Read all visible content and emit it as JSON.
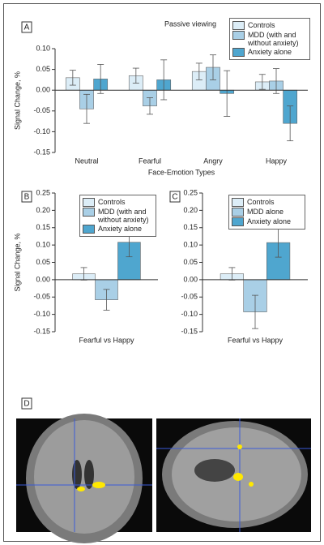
{
  "chart_data": [
    {
      "type": "bar",
      "panel": "A",
      "title": "Passive viewing",
      "ylabel": "Signal Change, %",
      "xlabel": "Face-Emotion Types",
      "categories": [
        "Neutral",
        "Fearful",
        "Angry",
        "Happy"
      ],
      "series": [
        {
          "name": "Controls",
          "color": "#dcedf7",
          "values": [
            0.03,
            0.035,
            0.045,
            0.02
          ],
          "errors": [
            0.018,
            0.018,
            0.02,
            0.018
          ]
        },
        {
          "name": "MDD (with and without anxiety)",
          "color": "#a9cfe6",
          "values": [
            -0.045,
            -0.038,
            0.055,
            0.022
          ],
          "errors": [
            0.035,
            0.02,
            0.03,
            0.03
          ]
        },
        {
          "name": "Anxiety alone",
          "color": "#4fa6cf",
          "values": [
            0.027,
            0.025,
            -0.008,
            -0.08
          ],
          "errors": [
            0.035,
            0.048,
            0.055,
            0.042
          ]
        }
      ],
      "ylim": [
        -0.15,
        0.1
      ],
      "yticks": [
        {
          "value": -0.15,
          "label": "-0.15"
        },
        {
          "value": -0.1,
          "label": "-0.10"
        },
        {
          "value": -0.05,
          "label": "-0.05"
        },
        {
          "value": 0,
          "label": "0.00"
        },
        {
          "value": 0.05,
          "label": "0.05"
        },
        {
          "value": 0.1,
          "label": "0.10"
        }
      ]
    },
    {
      "type": "bar",
      "panel": "B",
      "ylabel": "Signal Change, %",
      "categories": [
        "Fearful vs Happy"
      ],
      "series": [
        {
          "name": "Controls",
          "color": "#dcedf7",
          "values": [
            0.017
          ],
          "errors": [
            0.018
          ]
        },
        {
          "name": "MDD (with and without anxiety)",
          "color": "#a9cfe6",
          "values": [
            -0.058
          ],
          "errors": [
            0.03
          ]
        },
        {
          "name": "Anxiety alone",
          "color": "#4fa6cf",
          "values": [
            0.108
          ],
          "errors": [
            0.042
          ]
        }
      ],
      "ylim": [
        -0.15,
        0.25
      ],
      "yticks": [
        {
          "value": -0.15,
          "label": "-0.15"
        },
        {
          "value": -0.1,
          "label": "-0.10"
        },
        {
          "value": -0.05,
          "label": "-0.05"
        },
        {
          "value": 0,
          "label": "0.00"
        },
        {
          "value": 0.05,
          "label": "0.05"
        },
        {
          "value": 0.1,
          "label": "0.10"
        },
        {
          "value": 0.15,
          "label": "0.15"
        },
        {
          "value": 0.2,
          "label": "0.20"
        },
        {
          "value": 0.25,
          "label": "0.25"
        }
      ]
    },
    {
      "type": "bar",
      "panel": "C",
      "categories": [
        "Fearful vs Happy"
      ],
      "series": [
        {
          "name": "Controls",
          "color": "#dcedf7",
          "values": [
            0.017
          ],
          "errors": [
            0.018
          ]
        },
        {
          "name": "MDD alone",
          "color": "#a9cfe6",
          "values": [
            -0.093
          ],
          "errors": [
            0.048
          ]
        },
        {
          "name": "Anxiety alone",
          "color": "#4fa6cf",
          "values": [
            0.107
          ],
          "errors": [
            0.042
          ]
        }
      ],
      "ylim": [
        -0.15,
        0.25
      ],
      "yticks": [
        {
          "value": -0.15,
          "label": "-0.15"
        },
        {
          "value": -0.1,
          "label": "-0.10"
        },
        {
          "value": -0.05,
          "label": "-0.05"
        },
        {
          "value": 0,
          "label": "0.00"
        },
        {
          "value": 0.05,
          "label": "0.05"
        },
        {
          "value": 0.1,
          "label": "0.10"
        },
        {
          "value": 0.15,
          "label": "0.15"
        },
        {
          "value": 0.2,
          "label": "0.20"
        },
        {
          "value": 0.25,
          "label": "0.25"
        }
      ]
    }
  ],
  "image_panel": {
    "label": "D"
  }
}
